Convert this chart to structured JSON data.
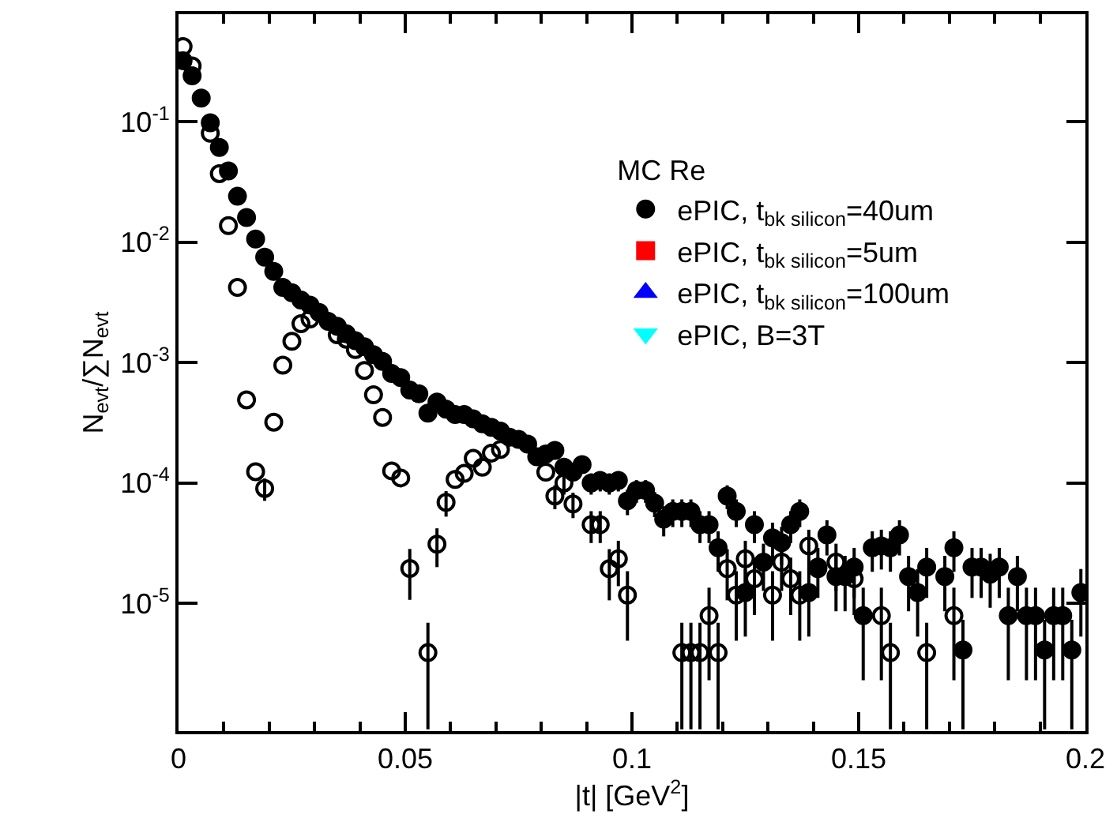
{
  "chart_data": {
    "type": "scatter",
    "xlabel": "|t| [GeV$^{2}$]",
    "ylabel": "N$_{evt}$/∑N$_{evt}$",
    "legend_title": "MC Re",
    "legend": "top right",
    "log": "y",
    "xlim": [
      0,
      0.2
    ],
    "xticks": [
      0,
      0.05,
      0.1,
      0.15,
      0.2
    ],
    "ylim": [
      8.7e-07,
      0.78
    ],
    "yticks": [
      {
        "value": 1e-05,
        "label": "10$^{-5}$"
      },
      {
        "value": 0.0001,
        "label": "10$^{-4}$"
      },
      {
        "value": 0.001,
        "label": "10$^{-3}$"
      },
      {
        "value": 0.01,
        "label": "10$^{-2}$"
      },
      {
        "value": 0.1,
        "label": "10$^{-1}$"
      }
    ],
    "x": [
      0.001,
      0.003,
      0.005,
      0.007,
      0.009,
      0.011,
      0.013,
      0.015,
      0.017,
      0.019,
      0.021,
      0.023,
      0.025,
      0.027,
      0.029,
      0.031,
      0.033,
      0.035,
      0.037,
      0.039,
      0.041,
      0.043,
      0.045,
      0.047,
      0.049,
      0.051,
      0.053,
      0.055,
      0.057,
      0.059,
      0.061,
      0.063,
      0.065,
      0.067,
      0.069,
      0.071,
      0.073,
      0.075,
      0.077,
      0.079,
      0.081,
      0.083,
      0.085,
      0.087,
      0.089,
      0.091,
      0.093,
      0.095,
      0.097,
      0.099,
      0.101,
      0.103,
      0.105,
      0.107,
      0.109,
      0.111,
      0.113,
      0.115,
      0.117,
      0.119,
      0.121,
      0.123,
      0.125,
      0.127,
      0.129,
      0.131,
      0.133,
      0.135,
      0.137,
      0.139,
      0.141,
      0.143,
      0.145,
      0.147,
      0.149,
      0.151,
      0.153,
      0.155,
      0.157,
      0.159,
      0.161,
      0.163,
      0.165,
      0.167,
      0.169,
      0.171,
      0.173,
      0.175,
      0.177,
      0.179,
      0.181,
      0.183,
      0.185,
      0.187,
      0.189,
      0.191,
      0.193,
      0.195,
      0.197,
      0.199
    ],
    "series": [
      {
        "color": "#000000",
        "marker": "circle-open",
        "values": [
          0.42,
          0.29,
          null,
          0.08,
          0.037,
          0.0137,
          0.0042,
          0.00049,
          0.000124,
          9e-05,
          0.00032,
          0.00095,
          0.0015,
          0.0021,
          0.0023,
          null,
          null,
          0.0017,
          0.00156,
          0.00128,
          0.00086,
          0.00054,
          0.00035,
          0.000126,
          0.00011,
          1.95e-05,
          null,
          3.9e-06,
          3.1e-05,
          6.9e-05,
          0.000107,
          0.00012,
          0.00016,
          0.000135,
          0.000177,
          0.00019,
          null,
          null,
          null,
          null,
          0.000123,
          7.8e-05,
          0.0001,
          6.7e-05,
          null,
          4.5e-05,
          4.5e-05,
          1.94e-05,
          2.35e-05,
          1.17e-05,
          null,
          null,
          null,
          null,
          null,
          3.9e-06,
          3.9e-06,
          3.9e-06,
          7.9e-06,
          3.9e-06,
          1.94e-05,
          1.17e-05,
          2.35e-05,
          1.6e-05,
          null,
          1.17e-05,
          2.2e-05,
          1.6e-05,
          1.17e-05,
          3e-05,
          1.94e-05,
          null,
          2.2e-05,
          null,
          1.6e-05,
          null,
          null,
          7.9e-06,
          3.9e-06,
          null,
          null,
          null,
          3.9e-06,
          null,
          null,
          7.9e-06,
          null,
          null,
          null,
          null,
          null,
          null,
          null,
          null,
          null,
          null,
          null,
          null,
          null,
          null
        ],
        "errors": [
          null,
          null,
          null,
          null,
          null,
          null,
          null,
          null,
          null,
          1.9e-05,
          null,
          null,
          null,
          null,
          null,
          null,
          null,
          null,
          null,
          null,
          null,
          null,
          null,
          null,
          null,
          8.8e-06,
          null,
          3e-06,
          1.1e-05,
          1.65e-05,
          null,
          null,
          null,
          null,
          null,
          null,
          null,
          null,
          null,
          null,
          null,
          1.75e-05,
          2e-05,
          1.6e-05,
          null,
          1.33e-05,
          1.33e-05,
          8.8e-06,
          9.6e-06,
          6.8e-06,
          null,
          null,
          null,
          null,
          null,
          3e-06,
          3e-06,
          3e-06,
          5.6e-06,
          3e-06,
          8.8e-06,
          6.8e-06,
          9.6e-06,
          8e-06,
          null,
          6.8e-06,
          9.3e-06,
          8e-06,
          6.8e-06,
          1.09e-05,
          null,
          null,
          9.3e-06,
          null,
          8e-06,
          null,
          null,
          5.6e-06,
          3e-06,
          null,
          null,
          null,
          3e-06,
          null,
          null,
          5.6e-06,
          null,
          null,
          null,
          null,
          null,
          null,
          null,
          null,
          null,
          null,
          null,
          null,
          null,
          null
        ]
      },
      {
        "name": "ePIC, t$_{bk silicon}$=40um",
        "color": "#000000",
        "marker": "circle",
        "values": [
          0.32,
          0.24,
          0.157,
          0.098,
          0.061,
          0.039,
          0.024,
          0.016,
          0.0106,
          0.0075,
          0.0057,
          0.0042,
          0.0038,
          0.0033,
          0.003,
          0.0026,
          0.0022,
          0.002,
          0.00173,
          0.00152,
          0.00135,
          0.00116,
          0.00102,
          0.00081,
          0.00075,
          0.00059,
          0.00055,
          0.00038,
          0.00047,
          0.00041,
          0.00037,
          0.00037,
          0.00034,
          0.00031,
          0.00029,
          0.00027,
          0.00024,
          0.00023,
          0.00021,
          0.000165,
          0.000174,
          0.000186,
          0.000135,
          0.000123,
          0.000142,
          0.0001,
          0.000105,
          0.0001,
          0.000105,
          7.1e-05,
          8.7e-05,
          8.7e-05,
          6.8e-05,
          5e-05,
          5.8e-05,
          5.8e-05,
          5.8e-05,
          4.5e-05,
          4.5e-05,
          2.9e-05,
          7.8e-05,
          5.8e-05,
          1.23e-05,
          4.5e-05,
          2.2e-05,
          3.5e-05,
          3.2e-05,
          4.5e-05,
          5.8e-05,
          1.23e-05,
          2e-05,
          3.7e-05,
          1.67e-05,
          1.67e-05,
          2e-05,
          7.9e-06,
          2.9e-05,
          3e-05,
          2.9e-05,
          3.7e-05,
          1.67e-05,
          1.23e-05,
          2e-05,
          null,
          1.67e-05,
          2.9e-05,
          4.1e-06,
          2e-05,
          2e-05,
          1.75e-05,
          2e-05,
          7.9e-06,
          1.67e-05,
          7.9e-06,
          7.9e-06,
          4.1e-06,
          7.9e-06,
          7.9e-06,
          4.1e-06,
          1.23e-05
        ],
        "errors": [
          null,
          null,
          null,
          null,
          null,
          null,
          null,
          null,
          null,
          null,
          null,
          null,
          null,
          null,
          null,
          null,
          null,
          null,
          null,
          null,
          null,
          null,
          null,
          null,
          null,
          null,
          null,
          null,
          null,
          null,
          null,
          null,
          null,
          null,
          null,
          null,
          null,
          null,
          null,
          null,
          null,
          null,
          null,
          null,
          null,
          2e-05,
          2e-05,
          2e-05,
          2e-05,
          1.7e-05,
          1.85e-05,
          1.85e-05,
          1.6e-05,
          1.4e-05,
          1.5e-05,
          1.5e-05,
          1.5e-05,
          1.33e-05,
          1.33e-05,
          1.07e-05,
          1.75e-05,
          1.5e-05,
          7e-06,
          1.33e-05,
          9.3e-06,
          1.18e-05,
          1.12e-05,
          1.33e-05,
          1.5e-05,
          7e-06,
          8.9e-06,
          1.2e-05,
          8.1e-06,
          8.1e-06,
          8.9e-06,
          5.6e-06,
          1.07e-05,
          1.09e-05,
          1.07e-05,
          1.2e-05,
          8.1e-06,
          7e-06,
          8.9e-06,
          null,
          8.1e-06,
          1.07e-05,
          3.2e-06,
          8.9e-06,
          8.9e-06,
          8.3e-06,
          8.9e-06,
          5.6e-06,
          8.1e-06,
          5.6e-06,
          5.6e-06,
          3.2e-06,
          5.6e-06,
          5.6e-06,
          3.2e-06,
          7e-06
        ]
      },
      {
        "name": "ePIC, t$_{bk silicon}$=5um",
        "color": "#ff0000",
        "marker": "square",
        "values": [
          null,
          null,
          null,
          null,
          null,
          null,
          null,
          null,
          null,
          null,
          null,
          null,
          null,
          null,
          null,
          null,
          null,
          null,
          null,
          null,
          null,
          null,
          null,
          null,
          null,
          null,
          null,
          null,
          null,
          null,
          null,
          null,
          null,
          null,
          null,
          null,
          null,
          null,
          null,
          null,
          null,
          null,
          null,
          null,
          null,
          null,
          null,
          null,
          null,
          null,
          null,
          null,
          null,
          null,
          null,
          null,
          null,
          null,
          null,
          null,
          null,
          null,
          null,
          null,
          null,
          null,
          null,
          null,
          null,
          null,
          null,
          null,
          null,
          null,
          null,
          null,
          null,
          null,
          null,
          null,
          null,
          null,
          null,
          null,
          null,
          null,
          null,
          null,
          null,
          null,
          null,
          null,
          null,
          null,
          null,
          null,
          null,
          null,
          null,
          null
        ]
      },
      {
        "name": "ePIC, t$_{bk silicon}$=100um",
        "color": "#0000ff",
        "marker": "triangle",
        "values": [
          null,
          null,
          null,
          null,
          null,
          null,
          null,
          null,
          null,
          null,
          null,
          null,
          null,
          null,
          null,
          null,
          null,
          null,
          null,
          null,
          null,
          null,
          null,
          null,
          null,
          null,
          null,
          null,
          null,
          null,
          null,
          null,
          null,
          null,
          null,
          null,
          null,
          null,
          null,
          null,
          null,
          null,
          null,
          null,
          null,
          null,
          null,
          null,
          null,
          null,
          null,
          null,
          null,
          null,
          null,
          null,
          null,
          null,
          null,
          null,
          null,
          null,
          null,
          null,
          null,
          null,
          null,
          null,
          null,
          null,
          null,
          null,
          null,
          null,
          null,
          null,
          null,
          null,
          null,
          null,
          null,
          null,
          null,
          null,
          null,
          null,
          null,
          null,
          null,
          null,
          null,
          null,
          null,
          null,
          null,
          null,
          null,
          null,
          null,
          null
        ]
      },
      {
        "name": "ePIC, B=3T",
        "color": "#00ffff",
        "marker": "triangle-down",
        "values": [
          null,
          null,
          null,
          null,
          null,
          null,
          null,
          null,
          null,
          null,
          null,
          null,
          null,
          null,
          null,
          null,
          null,
          null,
          null,
          null,
          null,
          null,
          null,
          null,
          null,
          null,
          null,
          null,
          null,
          null,
          null,
          null,
          null,
          null,
          null,
          null,
          null,
          null,
          null,
          null,
          null,
          null,
          null,
          null,
          null,
          null,
          null,
          null,
          null,
          null,
          null,
          null,
          null,
          null,
          null,
          null,
          null,
          null,
          null,
          null,
          null,
          null,
          null,
          null,
          null,
          null,
          null,
          null,
          null,
          null,
          null,
          null,
          null,
          null,
          null,
          null,
          null,
          null,
          null,
          null,
          null,
          null,
          null,
          null,
          null,
          null,
          null,
          null,
          null,
          null,
          null,
          null,
          null,
          null,
          null,
          null,
          null,
          null,
          null,
          null
        ]
      }
    ]
  }
}
